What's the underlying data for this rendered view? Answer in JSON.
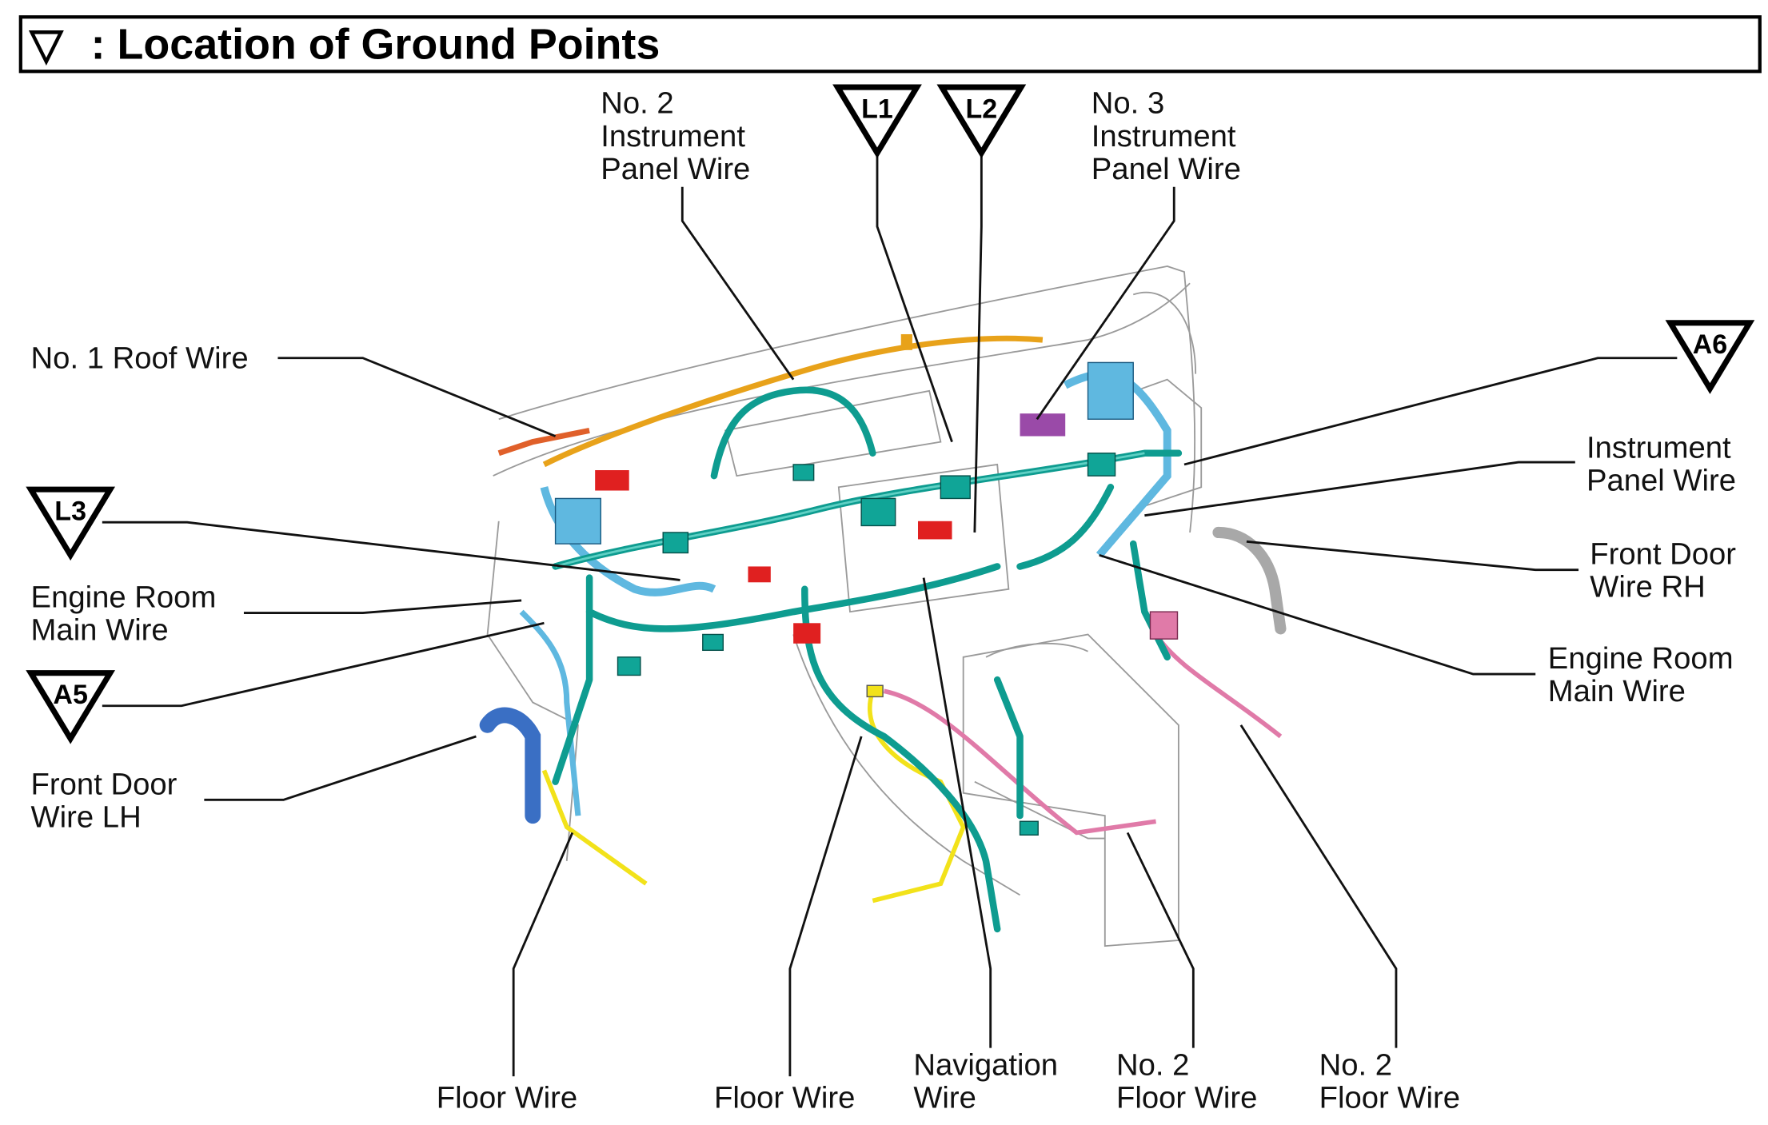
{
  "title": {
    "symbol": "▽",
    "text": ": Location of Ground Points"
  },
  "ground_points": [
    {
      "id": "L1"
    },
    {
      "id": "L2"
    },
    {
      "id": "L3"
    },
    {
      "id": "A5"
    },
    {
      "id": "A6"
    }
  ],
  "labels": {
    "no2_instrument_panel_wire": [
      "No. 2",
      "Instrument",
      "Panel Wire"
    ],
    "no3_instrument_panel_wire": [
      "No. 3",
      "Instrument",
      "Panel Wire"
    ],
    "no1_roof_wire": [
      "No. 1 Roof Wire"
    ],
    "instrument_panel_wire": [
      "Instrument",
      "Panel Wire"
    ],
    "front_door_wire_rh": [
      "Front Door",
      "Wire RH"
    ],
    "engine_room_main_wire_right": [
      "Engine Room",
      "Main Wire"
    ],
    "engine_room_main_wire_left": [
      "Engine Room",
      "Main Wire"
    ],
    "front_door_wire_lh": [
      "Front Door",
      "Wire LH"
    ],
    "floor_wire_left": [
      "Floor Wire"
    ],
    "floor_wire_center": [
      "Floor Wire"
    ],
    "navigation_wire": [
      "Navigation",
      "Wire"
    ],
    "no2_floor_wire_center": [
      "No. 2",
      "Floor Wire"
    ],
    "no2_floor_wire_right": [
      "No. 2",
      "Floor Wire"
    ]
  },
  "colors": {
    "main_harness": "#0e9c90",
    "engine_room_wire": "#5fb8e0",
    "front_door_lh": "#3a6fc4",
    "floor_wire": "#f2e21a",
    "no2_instrument_panel": "#e8a21a",
    "no2_floor_wire": "#e07aa8",
    "relay_blocks": "#e02020",
    "no3_instrument_panel": "#9a4aa8"
  }
}
